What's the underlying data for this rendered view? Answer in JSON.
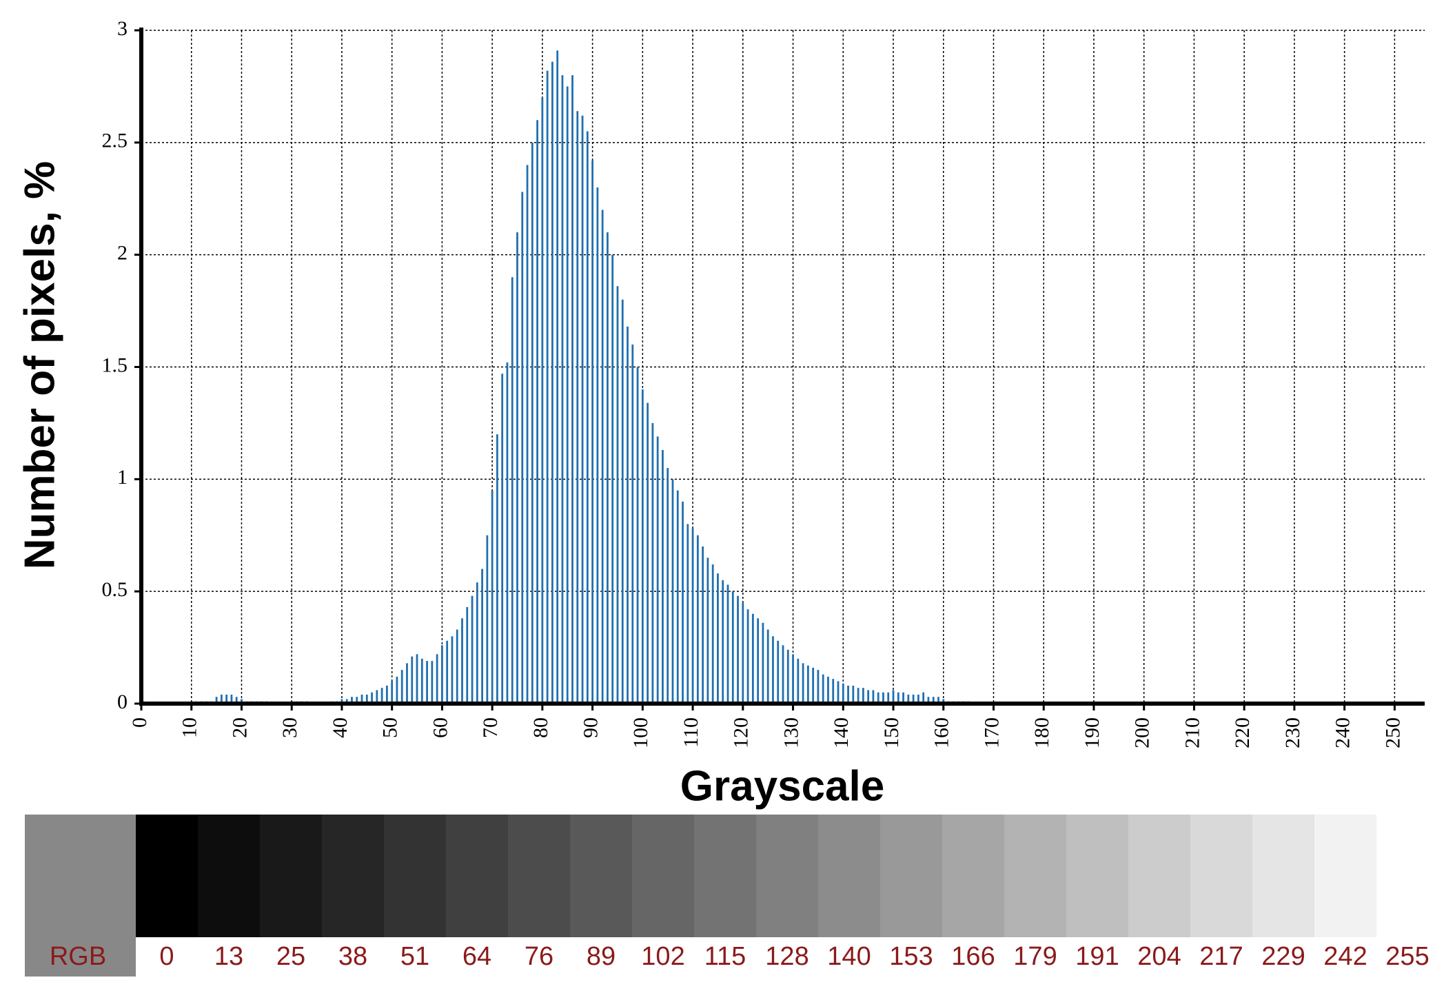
{
  "chart_data": {
    "type": "bar",
    "x_label": "Grayscale",
    "y_label": "Number of pixels, %",
    "x": [
      0,
      1,
      2,
      3,
      4,
      5,
      6,
      7,
      8,
      9,
      10,
      11,
      12,
      13,
      14,
      15,
      16,
      17,
      18,
      19,
      20,
      21,
      22,
      23,
      24,
      25,
      26,
      27,
      28,
      29,
      30,
      31,
      32,
      33,
      34,
      35,
      36,
      37,
      38,
      39,
      40,
      41,
      42,
      43,
      44,
      45,
      46,
      47,
      48,
      49,
      50,
      51,
      52,
      53,
      54,
      55,
      56,
      57,
      58,
      59,
      60,
      61,
      62,
      63,
      64,
      65,
      66,
      67,
      68,
      69,
      70,
      71,
      72,
      73,
      74,
      75,
      76,
      77,
      78,
      79,
      80,
      81,
      82,
      83,
      84,
      85,
      86,
      87,
      88,
      89,
      90,
      91,
      92,
      93,
      94,
      95,
      96,
      97,
      98,
      99,
      100,
      101,
      102,
      103,
      104,
      105,
      106,
      107,
      108,
      109,
      110,
      111,
      112,
      113,
      114,
      115,
      116,
      117,
      118,
      119,
      120,
      121,
      122,
      123,
      124,
      125,
      126,
      127,
      128,
      129,
      130,
      131,
      132,
      133,
      134,
      135,
      136,
      137,
      138,
      139,
      140,
      141,
      142,
      143,
      144,
      145,
      146,
      147,
      148,
      149,
      150,
      151,
      152,
      153,
      154,
      155,
      156,
      157,
      158,
      159,
      160,
      161,
      162,
      163,
      164,
      165,
      166,
      167,
      168,
      169,
      170,
      171,
      172,
      173,
      174,
      175,
      176,
      177,
      178,
      179,
      180,
      181,
      182,
      183,
      184,
      185,
      186,
      187,
      188,
      189,
      190,
      191,
      192,
      193,
      194,
      195,
      196,
      197,
      198,
      199,
      200,
      201,
      202,
      203,
      204,
      205,
      206,
      207,
      208,
      209,
      210,
      211,
      212,
      213,
      214,
      215,
      216,
      217,
      218,
      219,
      220,
      221,
      222,
      223,
      224,
      225,
      226,
      227,
      228,
      229,
      230,
      231,
      232,
      233,
      234,
      235,
      236,
      237,
      238,
      239,
      240,
      241,
      242,
      243,
      244,
      245,
      246,
      247,
      248,
      249,
      250,
      251,
      252,
      253,
      254,
      255
    ],
    "values": [
      0.05,
      0.005,
      0.005,
      0.005,
      0.005,
      0.005,
      0.005,
      0.005,
      0.005,
      0.005,
      0.01,
      0.01,
      0.01,
      0.01,
      0.01,
      0.03,
      0.04,
      0.04,
      0.04,
      0.03,
      0.02,
      0.01,
      0.01,
      0.01,
      0.01,
      0.01,
      0.005,
      0.005,
      0.005,
      0.005,
      0.01,
      0.01,
      0.01,
      0.01,
      0.005,
      0.005,
      0.005,
      0.005,
      0.01,
      0.01,
      0.02,
      0.02,
      0.03,
      0.03,
      0.04,
      0.04,
      0.05,
      0.06,
      0.07,
      0.08,
      0.1,
      0.12,
      0.15,
      0.18,
      0.21,
      0.22,
      0.2,
      0.19,
      0.19,
      0.22,
      0.26,
      0.28,
      0.3,
      0.33,
      0.38,
      0.43,
      0.48,
      0.54,
      0.6,
      0.75,
      0.95,
      1.2,
      1.47,
      1.52,
      1.9,
      2.1,
      2.28,
      2.4,
      2.5,
      2.6,
      2.7,
      2.82,
      2.86,
      2.91,
      2.8,
      2.75,
      2.8,
      2.64,
      2.62,
      2.55,
      2.42,
      2.3,
      2.2,
      2.1,
      2,
      1.86,
      1.8,
      1.68,
      1.6,
      1.5,
      1.4,
      1.34,
      1.25,
      1.19,
      1.13,
      1.05,
      1,
      0.95,
      0.9,
      0.8,
      0.78,
      0.75,
      0.7,
      0.65,
      0.62,
      0.58,
      0.55,
      0.53,
      0.5,
      0.48,
      0.45,
      0.42,
      0.4,
      0.38,
      0.36,
      0.33,
      0.3,
      0.28,
      0.26,
      0.24,
      0.22,
      0.2,
      0.18,
      0.17,
      0.16,
      0.15,
      0.13,
      0.12,
      0.11,
      0.1,
      0.09,
      0.08,
      0.08,
      0.07,
      0.07,
      0.06,
      0.06,
      0.05,
      0.05,
      0.05,
      0.06,
      0.05,
      0.05,
      0.04,
      0.04,
      0.04,
      0.05,
      0.03,
      0.03,
      0.03,
      0.02,
      0.01,
      0.01,
      0.01,
      0.01,
      0.01,
      0.005,
      0.005,
      0.005,
      0.005,
      0.005,
      0,
      0,
      0,
      0,
      0,
      0,
      0,
      0,
      0,
      0,
      0,
      0,
      0,
      0,
      0,
      0,
      0,
      0,
      0,
      0,
      0,
      0,
      0,
      0,
      0,
      0,
      0,
      0,
      0,
      0,
      0,
      0,
      0,
      0,
      0,
      0,
      0,
      0,
      0,
      0,
      0,
      0,
      0,
      0,
      0,
      0,
      0,
      0,
      0,
      0,
      0,
      0,
      0,
      0,
      0,
      0,
      0,
      0,
      0,
      0,
      0,
      0,
      0,
      0,
      0,
      0,
      0,
      0,
      0,
      0,
      0,
      0,
      0,
      0,
      0,
      0,
      0,
      0,
      0,
      0,
      0,
      0,
      0,
      0,
      0
    ],
    "color": "#1f6fb0",
    "xlim": [
      0,
      256
    ],
    "xticks": [
      0,
      10,
      20,
      30,
      40,
      50,
      60,
      70,
      80,
      90,
      100,
      110,
      120,
      130,
      140,
      150,
      160,
      170,
      180,
      190,
      200,
      210,
      220,
      230,
      240,
      250
    ],
    "ylim": [
      0,
      3
    ],
    "yticks": [
      0,
      0.5,
      1,
      1.5,
      2,
      2.5,
      3
    ],
    "grid": true
  },
  "grayscale_strip": {
    "label": "RGB",
    "values": [
      0,
      13,
      25,
      38,
      51,
      64,
      76,
      89,
      102,
      115,
      128,
      140,
      153,
      166,
      179,
      191,
      204,
      217,
      229,
      242,
      255
    ]
  }
}
